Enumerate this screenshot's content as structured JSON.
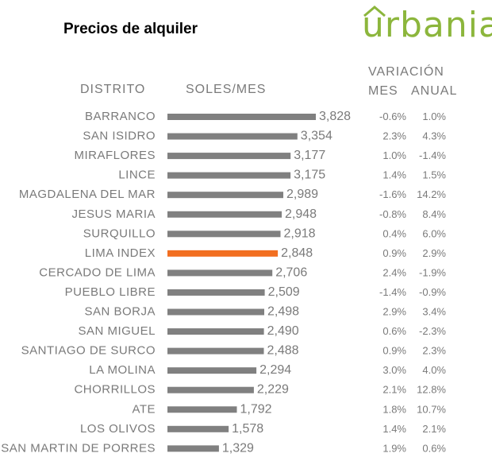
{
  "title": "Precios de alquiler",
  "logo": {
    "text": "urbania",
    "color": "#8cb63c"
  },
  "headers": {
    "district": "DISTRITO",
    "price": "SOLES/MES",
    "variation": "VARIACIÓN",
    "month": "MES",
    "annual": "ANUAL"
  },
  "colors": {
    "bar": "#808080",
    "highlight": "#f26f21",
    "text": "#7a7a7a"
  },
  "chart_data": {
    "type": "bar",
    "orientation": "horizontal",
    "categories": [
      "BARRANCO",
      "SAN ISIDRO",
      "MIRAFLORES",
      "LINCE",
      "MAGDALENA DEL MAR",
      "JESUS MARIA",
      "SURQUILLO",
      "LIMA INDEX",
      "CERCADO DE LIMA",
      "PUEBLO LIBRE",
      "SAN BORJA",
      "SAN MIGUEL",
      "SANTIAGO DE SURCO",
      "LA MOLINA",
      "CHORRILLOS",
      "ATE",
      "LOS OLIVOS",
      "SAN MARTIN DE PORRES"
    ],
    "values": [
      3828,
      3354,
      3177,
      3175,
      2989,
      2948,
      2918,
      2848,
      2706,
      2509,
      2498,
      2490,
      2488,
      2294,
      2229,
      1792,
      1578,
      1329
    ],
    "value_labels": [
      "3,828",
      "3,354",
      "3,177",
      "3,175",
      "2,989",
      "2,948",
      "2,918",
      "2,848",
      "2,706",
      "2,509",
      "2,498",
      "2,490",
      "2,488",
      "2,294",
      "2,229",
      "1,792",
      "1,578",
      "1,329"
    ],
    "variation_month": [
      "-0.6%",
      "2.3%",
      "1.0%",
      "1.4%",
      "-1.6%",
      "-0.8%",
      "0.4%",
      "0.9%",
      "2.4%",
      "-1.4%",
      "2.9%",
      "0.6%",
      "0.9%",
      "3.0%",
      "2.1%",
      "1.8%",
      "1.4%",
      "1.9%"
    ],
    "variation_annual": [
      "1.0%",
      "4.3%",
      "-1.4%",
      "1.5%",
      "14.2%",
      "8.4%",
      "6.0%",
      "2.9%",
      "-1.9%",
      "-0.9%",
      "3.4%",
      "-2.3%",
      "2.3%",
      "4.0%",
      "12.8%",
      "10.7%",
      "2.1%",
      "0.6%"
    ],
    "highlight_category": "LIMA INDEX",
    "xlim": [
      0,
      3828
    ],
    "grid": false,
    "legend": "none"
  }
}
